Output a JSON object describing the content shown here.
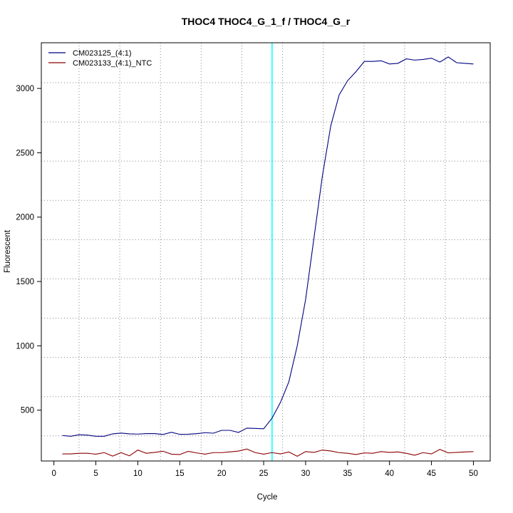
{
  "chart_data": {
    "type": "line",
    "title": "THOC4  THOC4_G_1_f / THOC4_G_r",
    "xlabel": "Cycle",
    "ylabel": "Fluorescent",
    "xlim": [
      -1.5,
      52
    ],
    "ylim": [
      105,
      3355
    ],
    "x_ticks": [
      0,
      5,
      10,
      15,
      20,
      25,
      30,
      35,
      40,
      45,
      50
    ],
    "y_ticks": [
      500,
      1000,
      1500,
      2000,
      2500,
      3000
    ],
    "grid": "dotted",
    "legend_position": "top-left",
    "threshold_cycle": 26,
    "threshold_color": "#00ffff",
    "x": [
      1,
      2,
      3,
      4,
      5,
      6,
      7,
      8,
      9,
      10,
      11,
      12,
      13,
      14,
      15,
      16,
      17,
      18,
      19,
      20,
      21,
      22,
      23,
      24,
      25,
      26,
      27,
      28,
      29,
      30,
      31,
      32,
      33,
      34,
      35,
      36,
      37,
      38,
      39,
      40,
      41,
      42,
      43,
      44,
      45,
      46,
      47,
      48,
      49,
      50
    ],
    "series": [
      {
        "name": "CM023125_(4:1)",
        "color": "#000080",
        "values": [
          303,
          297,
          309,
          306,
          297,
          297,
          316,
          322,
          316,
          314,
          318,
          318,
          311,
          328,
          312,
          313,
          317,
          325,
          321,
          343,
          343,
          327,
          360,
          358,
          355,
          438,
          560,
          720,
          1000,
          1360,
          1840,
          2320,
          2710,
          2950,
          3060,
          3130,
          3210,
          3210,
          3215,
          3190,
          3195,
          3230,
          3220,
          3225,
          3235,
          3205,
          3245,
          3200,
          3195,
          3190
        ]
      },
      {
        "name": "CM023133_(4:1)_NTC",
        "color": "#8b0000",
        "values": [
          160,
          160,
          165,
          165,
          158,
          170,
          143,
          170,
          145,
          190,
          165,
          172,
          181,
          158,
          155,
          180,
          168,
          158,
          170,
          170,
          176,
          182,
          198,
          170,
          158,
          170,
          160,
          175,
          142,
          178,
          172,
          190,
          183,
          170,
          165,
          155,
          168,
          165,
          178,
          172,
          175,
          165,
          150,
          170,
          160,
          195,
          168,
          172,
          175,
          178
        ]
      }
    ]
  }
}
